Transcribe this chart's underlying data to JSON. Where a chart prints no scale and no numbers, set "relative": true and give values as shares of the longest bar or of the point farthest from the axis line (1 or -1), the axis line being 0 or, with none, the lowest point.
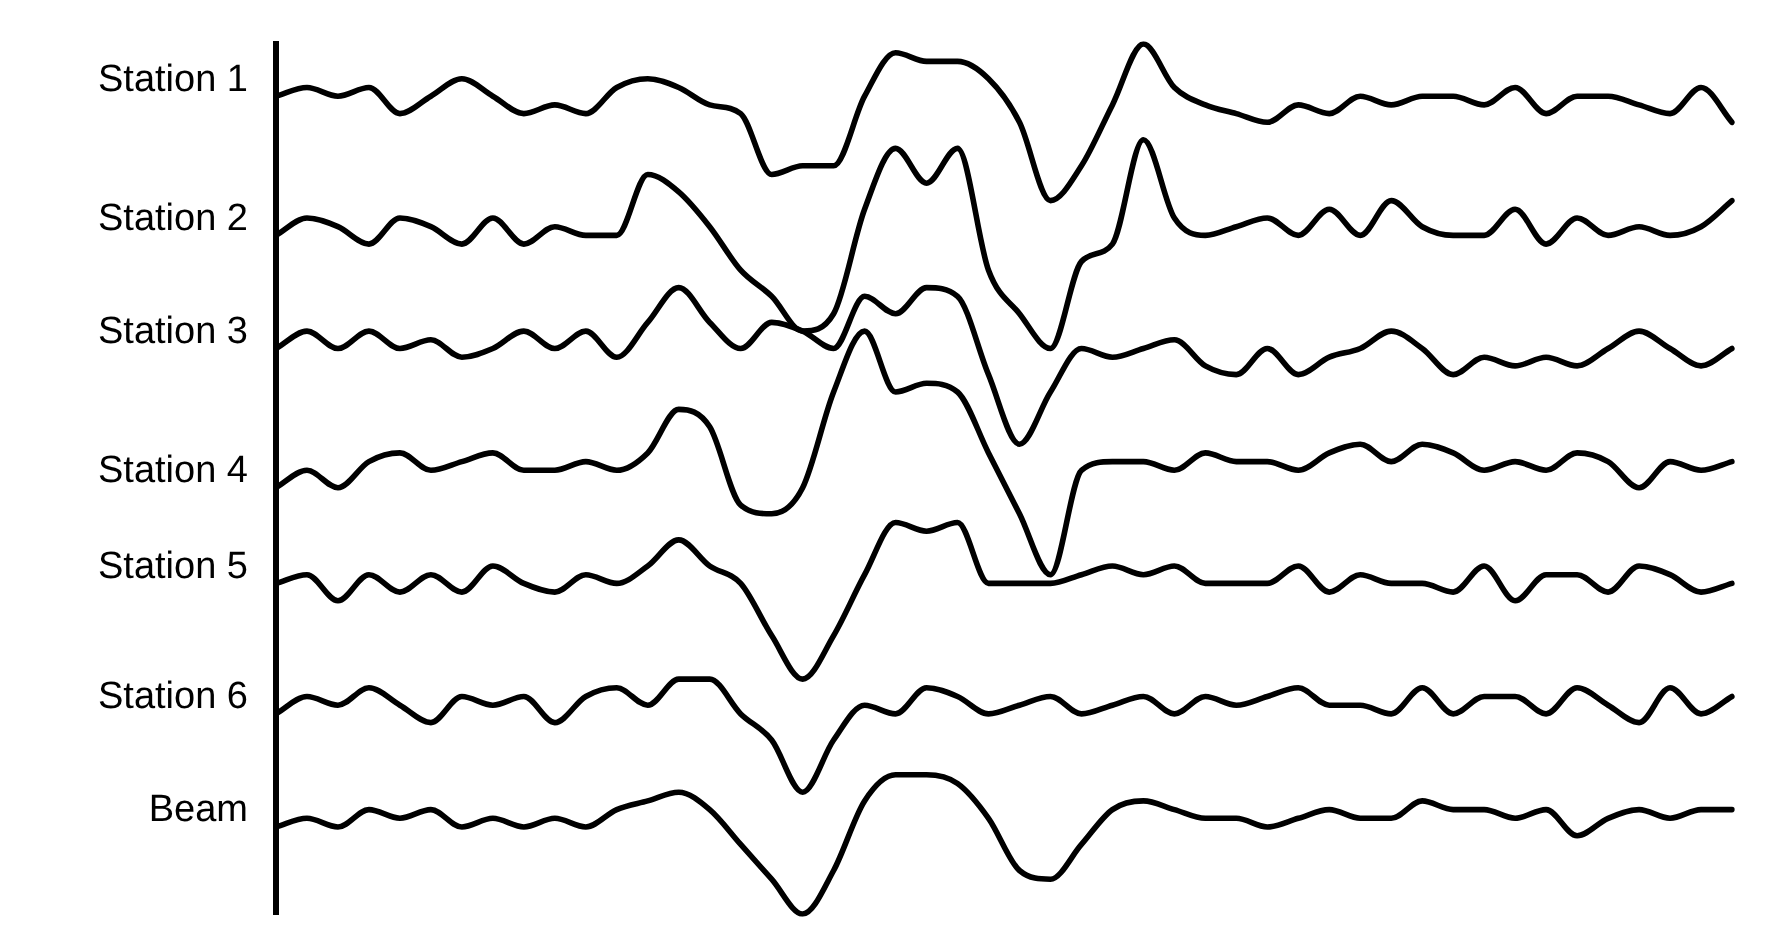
{
  "chart_data": {
    "type": "line",
    "relative": true,
    "legend": false,
    "grid": false,
    "marker": "none",
    "line_style": "solid",
    "categories": [
      null,
      null,
      null,
      null,
      null,
      null,
      null,
      null,
      null,
      null,
      null,
      null,
      null,
      null,
      null,
      null,
      null,
      null,
      null,
      null,
      null,
      null,
      null,
      null,
      null,
      null,
      null,
      null,
      null,
      null,
      null,
      null,
      null,
      null,
      null,
      null,
      null,
      null,
      null,
      null,
      null,
      null,
      null,
      null,
      null,
      null,
      null,
      null
    ],
    "series": [
      {
        "name": "Station 1",
        "color": "#000000",
        "values": [
          0.94,
          0.95,
          0.94,
          0.95,
          0.92,
          0.94,
          0.96,
          0.94,
          0.92,
          0.93,
          0.92,
          0.95,
          0.96,
          0.95,
          0.93,
          0.92,
          0.85,
          0.86,
          0.86,
          0.94,
          0.99,
          0.98,
          0.98,
          0.96,
          0.91,
          0.82,
          0.86,
          0.93,
          1.0,
          0.95,
          0.93,
          0.92,
          0.91,
          0.93,
          0.92,
          0.94,
          0.93,
          0.94,
          0.94,
          0.93,
          0.95,
          0.92,
          0.94,
          0.94,
          0.93,
          0.92,
          0.95,
          0.91
        ]
      },
      {
        "name": "Station 2",
        "color": "#000000",
        "values": [
          0.78,
          0.8,
          0.79,
          0.77,
          0.8,
          0.79,
          0.77,
          0.8,
          0.77,
          0.79,
          0.78,
          0.78,
          0.85,
          0.83,
          0.79,
          0.74,
          0.71,
          0.67,
          0.69,
          0.81,
          0.88,
          0.84,
          0.88,
          0.74,
          0.69,
          0.65,
          0.75,
          0.77,
          0.89,
          0.8,
          0.78,
          0.79,
          0.8,
          0.78,
          0.81,
          0.78,
          0.82,
          0.79,
          0.78,
          0.78,
          0.81,
          0.77,
          0.8,
          0.78,
          0.79,
          0.78,
          0.79,
          0.82
        ]
      },
      {
        "name": "Station 3",
        "color": "#000000",
        "values": [
          0.65,
          0.67,
          0.65,
          0.67,
          0.65,
          0.66,
          0.64,
          0.65,
          0.67,
          0.65,
          0.67,
          0.64,
          0.68,
          0.72,
          0.68,
          0.65,
          0.68,
          0.67,
          0.65,
          0.71,
          0.69,
          0.72,
          0.71,
          0.62,
          0.54,
          0.6,
          0.65,
          0.64,
          0.65,
          0.66,
          0.63,
          0.62,
          0.65,
          0.62,
          0.64,
          0.65,
          0.67,
          0.65,
          0.62,
          0.64,
          0.63,
          0.64,
          0.63,
          0.65,
          0.67,
          0.65,
          0.63,
          0.65
        ]
      },
      {
        "name": "Station 4",
        "color": "#000000",
        "values": [
          0.49,
          0.51,
          0.49,
          0.52,
          0.53,
          0.51,
          0.52,
          0.53,
          0.51,
          0.51,
          0.52,
          0.51,
          0.53,
          0.58,
          0.56,
          0.47,
          0.46,
          0.49,
          0.6,
          0.67,
          0.6,
          0.61,
          0.6,
          0.53,
          0.46,
          0.39,
          0.51,
          0.52,
          0.52,
          0.51,
          0.53,
          0.52,
          0.52,
          0.51,
          0.53,
          0.54,
          0.52,
          0.54,
          0.53,
          0.51,
          0.52,
          0.51,
          0.53,
          0.52,
          0.49,
          0.52,
          0.51,
          0.52
        ]
      },
      {
        "name": "Station 5",
        "color": "#000000",
        "values": [
          0.38,
          0.39,
          0.36,
          0.39,
          0.37,
          0.39,
          0.37,
          0.4,
          0.38,
          0.37,
          0.39,
          0.38,
          0.4,
          0.43,
          0.4,
          0.38,
          0.32,
          0.27,
          0.32,
          0.39,
          0.45,
          0.44,
          0.45,
          0.38,
          0.38,
          0.38,
          0.39,
          0.4,
          0.39,
          0.4,
          0.38,
          0.38,
          0.38,
          0.4,
          0.37,
          0.39,
          0.38,
          0.38,
          0.37,
          0.4,
          0.36,
          0.39,
          0.39,
          0.37,
          0.4,
          0.39,
          0.37,
          0.38
        ]
      },
      {
        "name": "Station 6",
        "color": "#000000",
        "values": [
          0.23,
          0.25,
          0.24,
          0.26,
          0.24,
          0.22,
          0.25,
          0.24,
          0.25,
          0.22,
          0.25,
          0.26,
          0.24,
          0.27,
          0.27,
          0.23,
          0.2,
          0.14,
          0.2,
          0.24,
          0.23,
          0.26,
          0.25,
          0.23,
          0.24,
          0.25,
          0.23,
          0.24,
          0.25,
          0.23,
          0.25,
          0.24,
          0.25,
          0.26,
          0.24,
          0.24,
          0.23,
          0.26,
          0.23,
          0.25,
          0.25,
          0.23,
          0.26,
          0.24,
          0.22,
          0.26,
          0.23,
          0.25
        ]
      },
      {
        "name": "Beam",
        "color": "#000000",
        "values": [
          0.1,
          0.11,
          0.1,
          0.12,
          0.11,
          0.12,
          0.1,
          0.11,
          0.1,
          0.11,
          0.1,
          0.12,
          0.13,
          0.14,
          0.12,
          0.08,
          0.04,
          0.0,
          0.05,
          0.13,
          0.16,
          0.16,
          0.15,
          0.11,
          0.05,
          0.04,
          0.08,
          0.12,
          0.13,
          0.12,
          0.11,
          0.11,
          0.1,
          0.11,
          0.12,
          0.11,
          0.11,
          0.13,
          0.12,
          0.12,
          0.11,
          0.12,
          0.09,
          0.11,
          0.12,
          0.11,
          0.12,
          0.12
        ]
      }
    ]
  }
}
